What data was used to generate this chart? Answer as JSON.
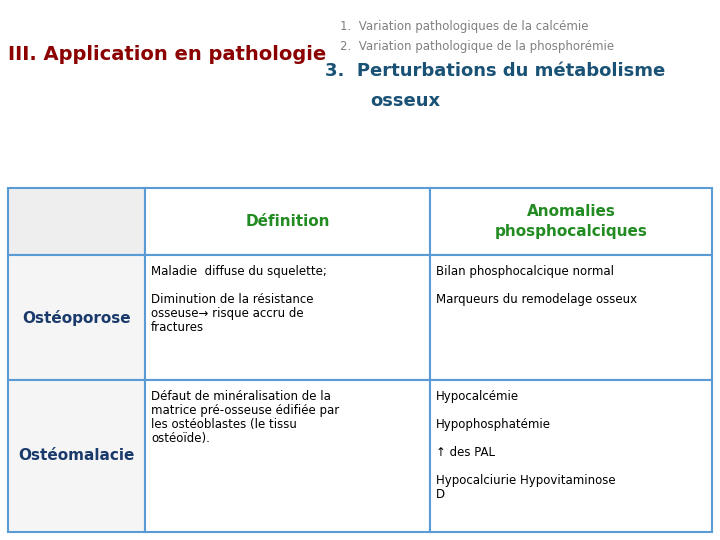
{
  "title_left": "III. Application en pathologie",
  "title_left_color": "#8B0000",
  "numbered_items": [
    "1.  Variation pathologiques de la calcémie",
    "2.  Variation pathologique de la phosphorémie"
  ],
  "numbered_items_color": "#808080",
  "item3_line1": "3.  Perturbations du métabolisme",
  "item3_line2": "osseux",
  "item3_color": "#1a5276",
  "col_headers": [
    "Définition",
    "Anomalies\nphosphocalciques"
  ],
  "col_header_color": "#228B22",
  "row_labels": [
    "Ostéoporose",
    "Ostéomalacie"
  ],
  "row_label_color": "#1a3a6b",
  "table_border_color": "#5b9bd5",
  "background_color": "#ffffff",
  "col1_row1_lines": [
    "Maladie  diffuse du squelette;",
    "",
    "Diminution de la résistance",
    "osseuse→ risque accru de",
    "fractures"
  ],
  "col2_row1_lines": [
    "Bilan phosphocalcique normal",
    "",
    "Marqueurs du remodelage osseux"
  ],
  "col1_row2_lines": [
    "Défaut de minéralisation de la",
    "matrice pré-osseuse édifiée par",
    "les ostéoblastes (le tissu",
    "ostéoïde)."
  ],
  "col2_row2_lines": [
    "Hypocalcémie",
    "",
    "Hypophosphatémie",
    "",
    "↑ des PAL",
    "",
    "Hypocalciurie Hypovitaminose",
    "D"
  ]
}
